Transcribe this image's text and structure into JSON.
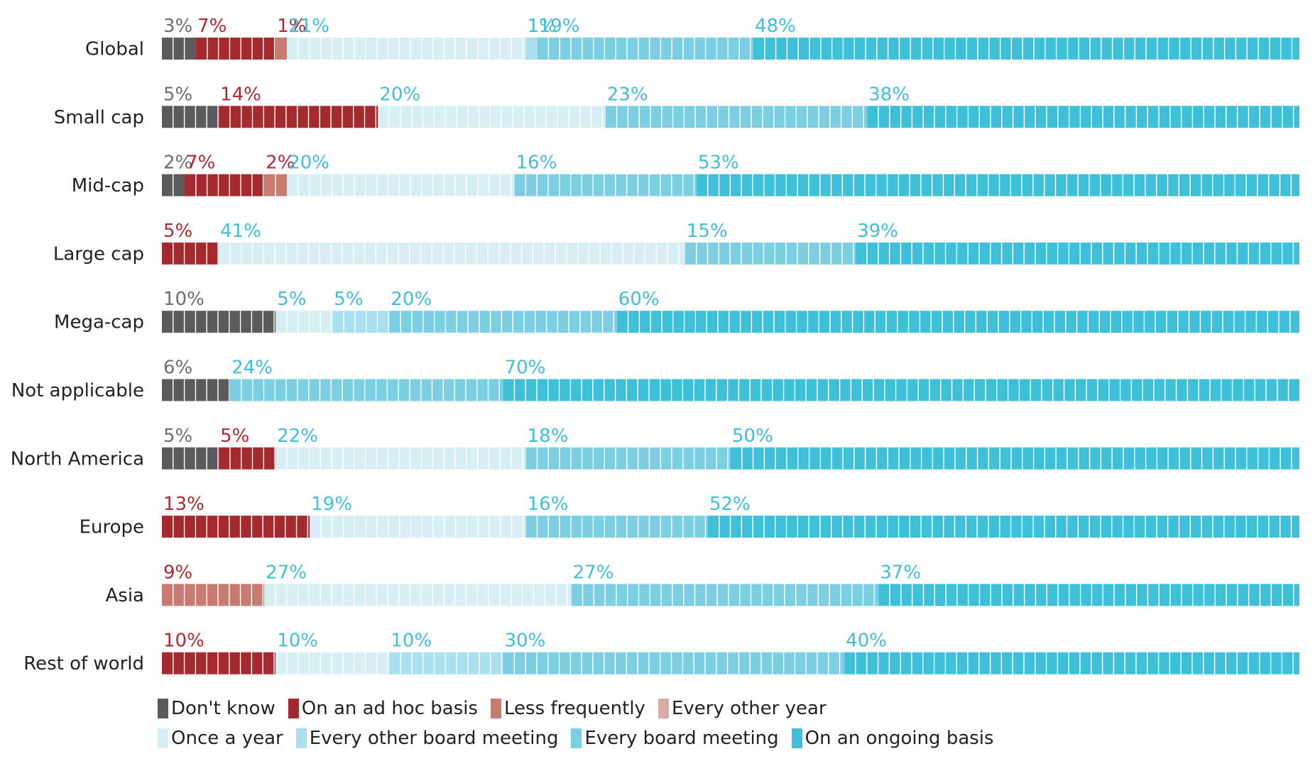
{
  "chart_data": {
    "type": "bar",
    "orientation": "horizontal",
    "stacked": true,
    "categories": [
      "Global",
      "Small cap",
      "Mid-cap",
      "Large cap",
      "Mega-cap",
      "Not applicable",
      "North America",
      "Europe",
      "Asia",
      "Rest of world"
    ],
    "series": [
      {
        "name": "Don't know",
        "color": "#5b5b5d",
        "label_color": "#6f6f6f",
        "values": [
          3,
          5,
          2,
          0,
          10,
          6,
          5,
          0,
          0,
          0
        ]
      },
      {
        "name": "On an ad hoc basis",
        "color": "#a52a2f",
        "label_color": "#b2282e",
        "values": [
          7,
          14,
          7,
          5,
          0,
          0,
          5,
          13,
          0,
          10
        ]
      },
      {
        "name": "Less frequently",
        "color": "#c97b70",
        "label_color": "#b2282e",
        "values": [
          1,
          0,
          2,
          0,
          0,
          0,
          0,
          0,
          9,
          0
        ]
      },
      {
        "name": "Every other year",
        "color": "#ddaaa3",
        "label_color": "#b2282e",
        "values": [
          0,
          0,
          0,
          0,
          0,
          0,
          0,
          0,
          0,
          0
        ]
      },
      {
        "name": "Once a year",
        "color": "#d7eef5",
        "label_color": "#41bed8",
        "values": [
          21,
          20,
          20,
          41,
          5,
          0,
          22,
          19,
          27,
          10
        ]
      },
      {
        "name": "Every other board meeting",
        "color": "#a9dfee",
        "label_color": "#41bed8",
        "values": [
          1,
          0,
          0,
          0,
          5,
          0,
          0,
          0,
          0,
          10
        ]
      },
      {
        "name": "Every board meeting",
        "color": "#7ccfe3",
        "label_color": "#41bed8",
        "values": [
          19,
          23,
          16,
          15,
          20,
          24,
          18,
          16,
          27,
          30
        ]
      },
      {
        "name": "On an ongoing basis",
        "color": "#3ec0d9",
        "label_color": "#41bed8",
        "values": [
          48,
          38,
          53,
          39,
          60,
          70,
          50,
          52,
          37,
          40
        ]
      }
    ],
    "value_labels": [
      [
        "3%",
        "7%",
        "1%",
        "",
        "21%",
        "1%",
        "19%",
        "48%"
      ],
      [
        "5%",
        "14%",
        "",
        "",
        "20%",
        "",
        "23%",
        "38%"
      ],
      [
        "2%",
        "7%",
        "2%",
        "",
        "20%",
        "",
        "16%",
        "53%"
      ],
      [
        "",
        "5%",
        "",
        "",
        "41%",
        "",
        "15%",
        "39%"
      ],
      [
        "10%",
        "",
        "",
        "",
        "5%",
        "5%",
        "20%",
        "60%"
      ],
      [
        "6%",
        "",
        "",
        "",
        "",
        "",
        "24%",
        "70%"
      ],
      [
        "5%",
        "5%",
        "",
        "",
        "22%",
        "",
        "18%",
        "50%"
      ],
      [
        "",
        "13%",
        "",
        "",
        "19%",
        "",
        "16%",
        "52%"
      ],
      [
        "",
        "",
        "9%",
        "",
        "27%",
        "",
        "27%",
        "37%"
      ],
      [
        "",
        "10%",
        "",
        "",
        "10%",
        "10%",
        "30%",
        "40%"
      ]
    ],
    "xlim": [
      0,
      100
    ],
    "grid": false,
    "legend_position": "bottom"
  },
  "legend": {
    "row1": [
      {
        "label": "Don't know",
        "color": "#5b5b5d"
      },
      {
        "label": "On an ad hoc basis",
        "color": "#a52a2f"
      },
      {
        "label": "Less frequently",
        "color": "#c97b70"
      },
      {
        "label": "Every other year",
        "color": "#ddaaa3"
      }
    ],
    "row2": [
      {
        "label": "Once a year",
        "color": "#d7eef5"
      },
      {
        "label": "Every other board meeting",
        "color": "#a9dfee"
      },
      {
        "label": "Every board meeting",
        "color": "#7ccfe3"
      },
      {
        "label": "On an ongoing basis",
        "color": "#3ec0d9"
      }
    ]
  }
}
